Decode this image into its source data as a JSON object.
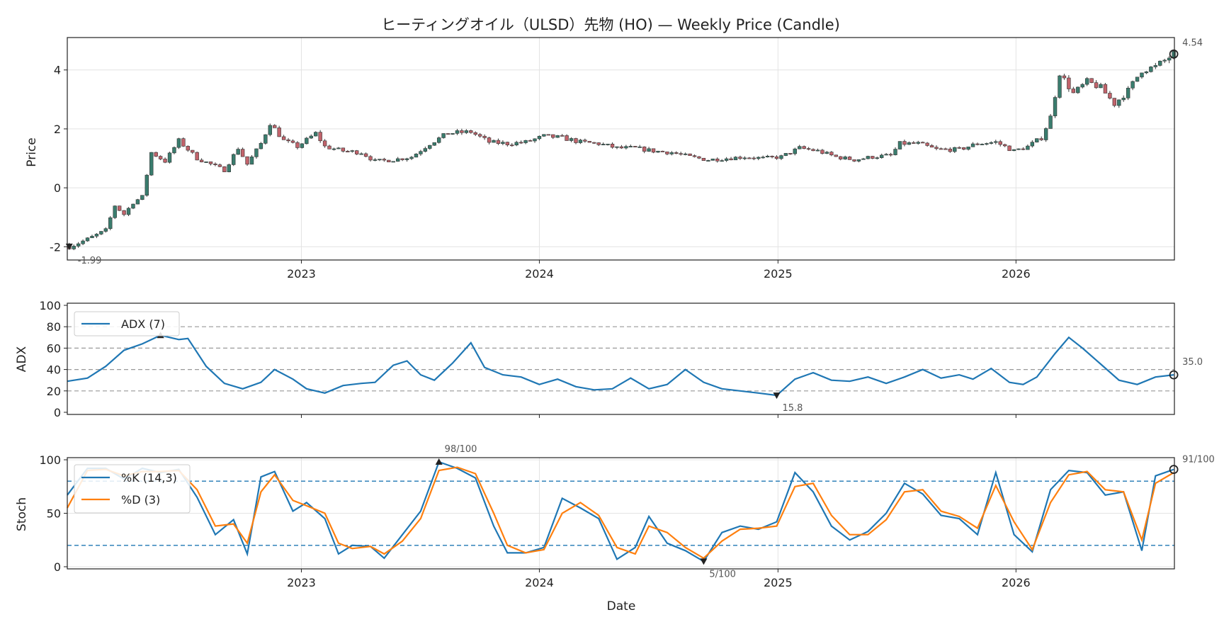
{
  "chart_data": [
    {
      "type": "candlestick",
      "title": "ヒーティングオイル（ULSD）先物 (HO) — Weekly Price (Candle)",
      "ylabel": "Price",
      "ylim": [
        -2.45,
        5.1
      ],
      "yticks": [
        -2,
        0,
        2,
        4
      ],
      "xlim": [
        "2022-01-07",
        "2026-09-01"
      ],
      "xticks": [
        {
          "date": "2023-01-01",
          "label": "2023"
        },
        {
          "date": "2024-01-01",
          "label": "2024"
        },
        {
          "date": "2025-01-01",
          "label": "2025"
        },
        {
          "date": "2026-01-01",
          "label": "2026"
        }
      ],
      "grid": true,
      "up_color": "#3a7d6e",
      "down_color": "#c2636b",
      "annotations": {
        "min_label": "-1.99",
        "last_label": "4.54"
      },
      "close_anchors": [
        [
          "2022-01-10",
          -1.99
        ],
        [
          "2022-02-07",
          -1.75
        ],
        [
          "2022-03-07",
          -1.45
        ],
        [
          "2022-03-21",
          -0.6
        ],
        [
          "2022-04-04",
          -0.9
        ],
        [
          "2022-04-18",
          -0.5
        ],
        [
          "2022-05-02",
          -0.3
        ],
        [
          "2022-05-16",
          1.2
        ],
        [
          "2022-06-06",
          0.9
        ],
        [
          "2022-06-27",
          1.6
        ],
        [
          "2022-07-25",
          1.0
        ],
        [
          "2022-08-15",
          0.8
        ],
        [
          "2022-09-05",
          0.6
        ],
        [
          "2022-09-26",
          1.35
        ],
        [
          "2022-10-10",
          0.8
        ],
        [
          "2022-10-31",
          1.5
        ],
        [
          "2022-11-14",
          2.2
        ],
        [
          "2022-12-05",
          1.6
        ],
        [
          "2022-12-26",
          1.4
        ],
        [
          "2023-01-23",
          1.85
        ],
        [
          "2023-02-06",
          1.4
        ],
        [
          "2023-03-06",
          1.25
        ],
        [
          "2023-04-03",
          1.2
        ],
        [
          "2023-04-24",
          0.9
        ],
        [
          "2023-05-22",
          0.95
        ],
        [
          "2023-06-19",
          1.05
        ],
        [
          "2023-07-17",
          1.5
        ],
        [
          "2023-08-14",
          1.85
        ],
        [
          "2023-09-18",
          1.9
        ],
        [
          "2023-10-16",
          1.55
        ],
        [
          "2023-11-13",
          1.5
        ],
        [
          "2023-12-11",
          1.55
        ],
        [
          "2024-01-08",
          1.75
        ],
        [
          "2024-02-05",
          1.7
        ],
        [
          "2024-03-04",
          1.55
        ],
        [
          "2024-04-01",
          1.5
        ],
        [
          "2024-04-29",
          1.35
        ],
        [
          "2024-05-27",
          1.35
        ],
        [
          "2024-06-24",
          1.25
        ],
        [
          "2024-07-22",
          1.2
        ],
        [
          "2024-08-19",
          1.05
        ],
        [
          "2024-09-16",
          0.95
        ],
        [
          "2024-10-14",
          1.0
        ],
        [
          "2024-11-11",
          1.05
        ],
        [
          "2024-12-09",
          1.0
        ],
        [
          "2025-01-06",
          1.05
        ],
        [
          "2025-02-03",
          1.35
        ],
        [
          "2025-03-03",
          1.25
        ],
        [
          "2025-03-31",
          1.05
        ],
        [
          "2025-04-28",
          0.95
        ],
        [
          "2025-05-26",
          1.05
        ],
        [
          "2025-06-23",
          1.1
        ],
        [
          "2025-07-07",
          1.5
        ],
        [
          "2025-08-04",
          1.5
        ],
        [
          "2025-09-01",
          1.3
        ],
        [
          "2025-10-06",
          1.3
        ],
        [
          "2025-11-03",
          1.5
        ],
        [
          "2025-12-01",
          1.55
        ],
        [
          "2025-12-29",
          1.25
        ],
        [
          "2026-01-19",
          1.4
        ],
        [
          "2026-02-09",
          1.7
        ],
        [
          "2026-02-23",
          2.4
        ],
        [
          "2026-03-09",
          3.9
        ],
        [
          "2026-03-30",
          3.2
        ],
        [
          "2026-04-20",
          3.6
        ],
        [
          "2026-05-11",
          3.4
        ],
        [
          "2026-06-01",
          2.85
        ],
        [
          "2026-06-22",
          3.3
        ],
        [
          "2026-07-13",
          4.0
        ],
        [
          "2026-08-03",
          4.1
        ],
        [
          "2026-08-31",
          4.54
        ]
      ]
    },
    {
      "type": "line",
      "ylabel": "ADX",
      "ylim": [
        -2,
        102
      ],
      "yticks": [
        0,
        20,
        40,
        60,
        80,
        100
      ],
      "hlines": [
        20,
        40,
        60,
        80
      ],
      "series": [
        {
          "name": "ADX (7)",
          "color": "#1f77b4"
        }
      ],
      "annotations": {
        "max_label": "",
        "min_label": "15.8",
        "last_label": "35.0"
      },
      "points": [
        [
          "2022-01-07",
          29
        ],
        [
          "2022-02-07",
          32
        ],
        [
          "2022-03-07",
          43
        ],
        [
          "2022-04-04",
          58
        ],
        [
          "2022-05-02",
          64
        ],
        [
          "2022-05-30",
          72
        ],
        [
          "2022-06-27",
          68
        ],
        [
          "2022-07-11",
          69
        ],
        [
          "2022-08-08",
          43
        ],
        [
          "2022-09-05",
          27
        ],
        [
          "2022-10-03",
          22
        ],
        [
          "2022-10-31",
          28
        ],
        [
          "2022-11-21",
          40
        ],
        [
          "2022-12-19",
          31
        ],
        [
          "2023-01-09",
          22
        ],
        [
          "2023-02-06",
          18
        ],
        [
          "2023-03-06",
          25
        ],
        [
          "2023-04-03",
          27
        ],
        [
          "2023-04-24",
          28
        ],
        [
          "2023-05-22",
          44
        ],
        [
          "2023-06-12",
          48
        ],
        [
          "2023-07-03",
          35
        ],
        [
          "2023-07-24",
          30
        ],
        [
          "2023-08-21",
          46
        ],
        [
          "2023-09-18",
          65
        ],
        [
          "2023-10-09",
          42
        ],
        [
          "2023-11-06",
          35
        ],
        [
          "2023-12-04",
          33
        ],
        [
          "2024-01-01",
          26
        ],
        [
          "2024-01-29",
          31
        ],
        [
          "2024-02-26",
          24
        ],
        [
          "2024-03-25",
          21
        ],
        [
          "2024-04-22",
          22
        ],
        [
          "2024-05-20",
          32
        ],
        [
          "2024-06-17",
          22
        ],
        [
          "2024-07-15",
          26
        ],
        [
          "2024-08-12",
          40
        ],
        [
          "2024-09-09",
          28
        ],
        [
          "2024-10-07",
          22
        ],
        [
          "2024-11-04",
          20
        ],
        [
          "2024-12-02",
          18
        ],
        [
          "2024-12-30",
          15.8
        ],
        [
          "2025-01-27",
          31
        ],
        [
          "2025-02-24",
          37
        ],
        [
          "2025-03-24",
          30
        ],
        [
          "2025-04-21",
          29
        ],
        [
          "2025-05-19",
          33
        ],
        [
          "2025-06-16",
          27
        ],
        [
          "2025-07-14",
          33
        ],
        [
          "2025-08-11",
          40
        ],
        [
          "2025-09-08",
          32
        ],
        [
          "2025-10-06",
          35
        ],
        [
          "2025-10-27",
          31
        ],
        [
          "2025-11-24",
          41
        ],
        [
          "2025-12-22",
          28
        ],
        [
          "2026-01-12",
          26
        ],
        [
          "2026-02-02",
          33
        ],
        [
          "2026-03-02",
          55
        ],
        [
          "2026-03-23",
          70
        ],
        [
          "2026-04-13",
          60
        ],
        [
          "2026-05-11",
          45
        ],
        [
          "2026-06-08",
          30
        ],
        [
          "2026-07-06",
          26
        ],
        [
          "2026-08-03",
          33
        ],
        [
          "2026-08-31",
          35.0
        ]
      ]
    },
    {
      "type": "line",
      "ylabel": "Stoch",
      "xlabel": "Date",
      "ylim": [
        -2,
        102
      ],
      "yticks": [
        0,
        50,
        100
      ],
      "hlines": [
        20,
        80
      ],
      "series": [
        {
          "name": "%K (14,3)",
          "color": "#1f77b4"
        },
        {
          "name": "%D (3)",
          "color": "#ff7f0e"
        }
      ],
      "annotations": {
        "max_label": "98/100",
        "min_label": "5/100",
        "last_label": "91/100"
      },
      "k_points": [
        [
          "2022-01-07",
          67
        ],
        [
          "2022-02-07",
          92
        ],
        [
          "2022-03-07",
          92
        ],
        [
          "2022-04-04",
          82
        ],
        [
          "2022-05-02",
          92
        ],
        [
          "2022-05-30",
          88
        ],
        [
          "2022-06-27",
          91
        ],
        [
          "2022-07-25",
          65
        ],
        [
          "2022-08-22",
          30
        ],
        [
          "2022-09-19",
          44
        ],
        [
          "2022-10-10",
          12
        ],
        [
          "2022-10-31",
          84
        ],
        [
          "2022-11-21",
          89
        ],
        [
          "2022-12-19",
          52
        ],
        [
          "2023-01-09",
          60
        ],
        [
          "2023-02-06",
          45
        ],
        [
          "2023-02-27",
          12
        ],
        [
          "2023-03-20",
          20
        ],
        [
          "2023-04-17",
          19
        ],
        [
          "2023-05-08",
          8
        ],
        [
          "2023-06-05",
          30
        ],
        [
          "2023-07-03",
          52
        ],
        [
          "2023-07-31",
          98
        ],
        [
          "2023-08-28",
          92
        ],
        [
          "2023-09-25",
          83
        ],
        [
          "2023-10-23",
          38
        ],
        [
          "2023-11-13",
          13
        ],
        [
          "2023-12-11",
          13
        ],
        [
          "2024-01-08",
          18
        ],
        [
          "2024-02-05",
          64
        ],
        [
          "2024-03-04",
          55
        ],
        [
          "2024-04-01",
          45
        ],
        [
          "2024-04-29",
          7
        ],
        [
          "2024-05-27",
          18
        ],
        [
          "2024-06-17",
          47
        ],
        [
          "2024-07-15",
          22
        ],
        [
          "2024-08-12",
          15
        ],
        [
          "2024-09-09",
          5
        ],
        [
          "2024-10-07",
          32
        ],
        [
          "2024-11-04",
          38
        ],
        [
          "2024-12-02",
          35
        ],
        [
          "2024-12-30",
          42
        ],
        [
          "2025-01-27",
          88
        ],
        [
          "2025-02-24",
          70
        ],
        [
          "2025-03-24",
          38
        ],
        [
          "2025-04-21",
          25
        ],
        [
          "2025-05-19",
          33
        ],
        [
          "2025-06-16",
          50
        ],
        [
          "2025-07-14",
          78
        ],
        [
          "2025-08-11",
          68
        ],
        [
          "2025-09-08",
          48
        ],
        [
          "2025-10-06",
          45
        ],
        [
          "2025-11-03",
          30
        ],
        [
          "2025-12-01",
          88
        ],
        [
          "2025-12-29",
          30
        ],
        [
          "2026-01-26",
          14
        ],
        [
          "2026-02-23",
          72
        ],
        [
          "2026-03-23",
          90
        ],
        [
          "2026-04-20",
          88
        ],
        [
          "2026-05-18",
          67
        ],
        [
          "2026-06-15",
          70
        ],
        [
          "2026-07-13",
          15
        ],
        [
          "2026-08-03",
          85
        ],
        [
          "2026-08-31",
          91
        ]
      ],
      "d_points": [
        [
          "2022-01-07",
          55
        ],
        [
          "2022-02-07",
          90
        ],
        [
          "2022-03-07",
          91
        ],
        [
          "2022-04-04",
          85
        ],
        [
          "2022-05-02",
          89
        ],
        [
          "2022-05-30",
          89
        ],
        [
          "2022-06-27",
          90
        ],
        [
          "2022-07-25",
          72
        ],
        [
          "2022-08-22",
          38
        ],
        [
          "2022-09-19",
          40
        ],
        [
          "2022-10-10",
          22
        ],
        [
          "2022-10-31",
          70
        ],
        [
          "2022-11-21",
          86
        ],
        [
          "2022-12-19",
          62
        ],
        [
          "2023-01-09",
          57
        ],
        [
          "2023-02-06",
          50
        ],
        [
          "2023-02-27",
          22
        ],
        [
          "2023-03-20",
          17
        ],
        [
          "2023-04-17",
          19
        ],
        [
          "2023-05-08",
          12
        ],
        [
          "2023-06-05",
          24
        ],
        [
          "2023-07-03",
          45
        ],
        [
          "2023-07-31",
          90
        ],
        [
          "2023-08-28",
          93
        ],
        [
          "2023-09-25",
          87
        ],
        [
          "2023-10-23",
          50
        ],
        [
          "2023-11-13",
          20
        ],
        [
          "2023-12-11",
          13
        ],
        [
          "2024-01-08",
          16
        ],
        [
          "2024-02-05",
          50
        ],
        [
          "2024-03-04",
          60
        ],
        [
          "2024-04-01",
          48
        ],
        [
          "2024-04-29",
          18
        ],
        [
          "2024-05-27",
          12
        ],
        [
          "2024-06-17",
          38
        ],
        [
          "2024-07-15",
          32
        ],
        [
          "2024-08-12",
          18
        ],
        [
          "2024-09-09",
          8
        ],
        [
          "2024-10-07",
          24
        ],
        [
          "2024-11-04",
          35
        ],
        [
          "2024-12-02",
          36
        ],
        [
          "2024-12-30",
          38
        ],
        [
          "2025-01-27",
          75
        ],
        [
          "2025-02-24",
          78
        ],
        [
          "2025-03-24",
          48
        ],
        [
          "2025-04-21",
          30
        ],
        [
          "2025-05-19",
          30
        ],
        [
          "2025-06-16",
          44
        ],
        [
          "2025-07-14",
          70
        ],
        [
          "2025-08-11",
          72
        ],
        [
          "2025-09-08",
          52
        ],
        [
          "2025-10-06",
          47
        ],
        [
          "2025-11-03",
          36
        ],
        [
          "2025-12-01",
          76
        ],
        [
          "2025-12-29",
          42
        ],
        [
          "2026-01-26",
          16
        ],
        [
          "2026-02-23",
          60
        ],
        [
          "2026-03-23",
          86
        ],
        [
          "2026-04-20",
          89
        ],
        [
          "2026-05-18",
          72
        ],
        [
          "2026-06-15",
          70
        ],
        [
          "2026-07-13",
          25
        ],
        [
          "2026-08-03",
          78
        ],
        [
          "2026-08-31",
          88
        ]
      ]
    }
  ]
}
